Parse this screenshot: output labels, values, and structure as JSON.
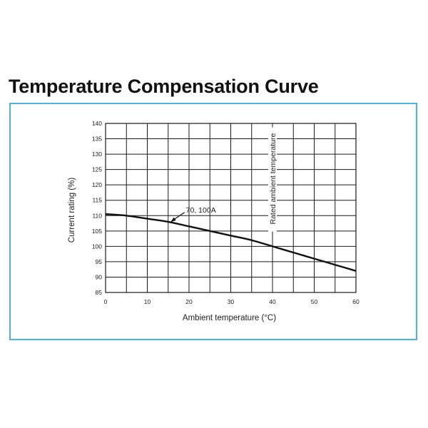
{
  "title": "Temperature Compensation Curve",
  "chart_data": {
    "type": "line",
    "title": "",
    "xlabel": "Ambient temperature (°C)",
    "ylabel": "Current rating (%)",
    "xlim": [
      0,
      60
    ],
    "ylim": [
      85,
      140
    ],
    "x_ticks": [
      0,
      10,
      20,
      30,
      40,
      50,
      60
    ],
    "y_ticks": [
      85,
      90,
      95,
      100,
      105,
      110,
      115,
      120,
      125,
      130,
      135,
      140
    ],
    "x_grid_step": 5,
    "y_grid_step": 5,
    "grid": true,
    "series": [
      {
        "name": "70, 100A",
        "x": [
          0,
          5,
          10,
          15,
          20,
          25,
          30,
          35,
          40,
          45,
          50,
          55,
          60
        ],
        "y": [
          110.5,
          110,
          109,
          108,
          106.5,
          105,
          103.5,
          102,
          100,
          98,
          96,
          94,
          92
        ]
      }
    ],
    "annotations": [
      {
        "text": "70, 100A",
        "x": 15.5,
        "y": 107.8
      },
      {
        "text": "Rated ambient temperature",
        "x": 40,
        "y": 122
      }
    ],
    "reference_lines": [
      {
        "axis": "x",
        "value": 40,
        "label": "Rated ambient temperature"
      }
    ]
  }
}
